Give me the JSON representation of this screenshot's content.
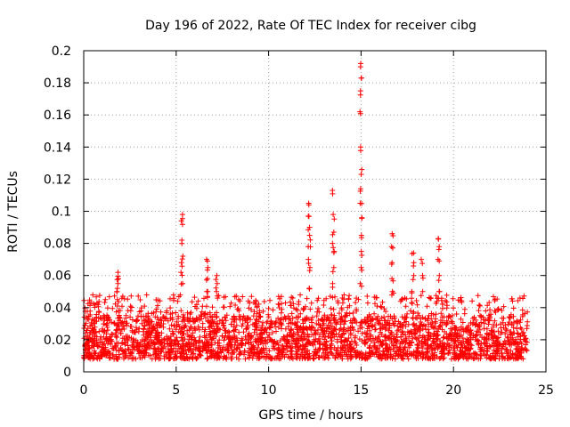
{
  "chart_data": {
    "type": "scatter",
    "title": "Day 196 of 2022, Rate Of TEC Index for receiver cibg",
    "xlabel": "GPS time / hours",
    "ylabel": "ROTI / TECUs",
    "xlim": [
      0,
      25
    ],
    "ylim": [
      0,
      0.2
    ],
    "xticks": [
      0,
      5,
      10,
      15,
      20,
      25
    ],
    "xtick_labels": [
      "0",
      "5",
      "10",
      "15",
      "20",
      "25"
    ],
    "yticks": [
      0,
      0.02,
      0.04,
      0.06,
      0.08,
      0.1,
      0.12,
      0.14,
      0.16,
      0.18,
      0.2
    ],
    "ytick_labels": [
      "0",
      "0.02",
      "0.04",
      "0.06",
      "0.08",
      "0.1",
      "0.12",
      "0.14",
      "0.16",
      "0.18",
      "0.2"
    ],
    "grid": true,
    "marker": "+",
    "color": "#ff0000",
    "series": [
      {
        "name": "ROTI",
        "description_x_range": [
          0,
          24
        ],
        "baseline_band": [
          0.008,
          0.035
        ],
        "spikes": [
          {
            "x": 1.85,
            "values": [
              0.045,
              0.05,
              0.055,
              0.058,
              0.062
            ]
          },
          {
            "x": 5.3,
            "values": [
              0.055,
              0.062,
              0.068,
              0.072,
              0.082,
              0.094,
              0.098
            ]
          },
          {
            "x": 6.7,
            "values": [
              0.05,
              0.058,
              0.065,
              0.07
            ]
          },
          {
            "x": 7.2,
            "values": [
              0.05,
              0.055,
              0.06
            ]
          },
          {
            "x": 12.2,
            "values": [
              0.052,
              0.065,
              0.07,
              0.078,
              0.085,
              0.09,
              0.097,
              0.105
            ]
          },
          {
            "x": 13.5,
            "values": [
              0.055,
              0.065,
              0.075,
              0.08,
              0.087,
              0.098,
              0.113
            ]
          },
          {
            "x": 15.0,
            "values": [
              0.055,
              0.065,
              0.075,
              0.085,
              0.096,
              0.105,
              0.114,
              0.126,
              0.14,
              0.162,
              0.175,
              0.183,
              0.192
            ]
          },
          {
            "x": 16.7,
            "values": [
              0.05,
              0.058,
              0.068,
              0.078,
              0.086
            ]
          },
          {
            "x": 17.8,
            "values": [
              0.05,
              0.06,
              0.068,
              0.074
            ]
          },
          {
            "x": 18.3,
            "values": [
              0.05,
              0.06,
              0.07
            ]
          },
          {
            "x": 19.2,
            "values": [
              0.05,
              0.06,
              0.07,
              0.078,
              0.083
            ]
          }
        ]
      }
    ]
  }
}
